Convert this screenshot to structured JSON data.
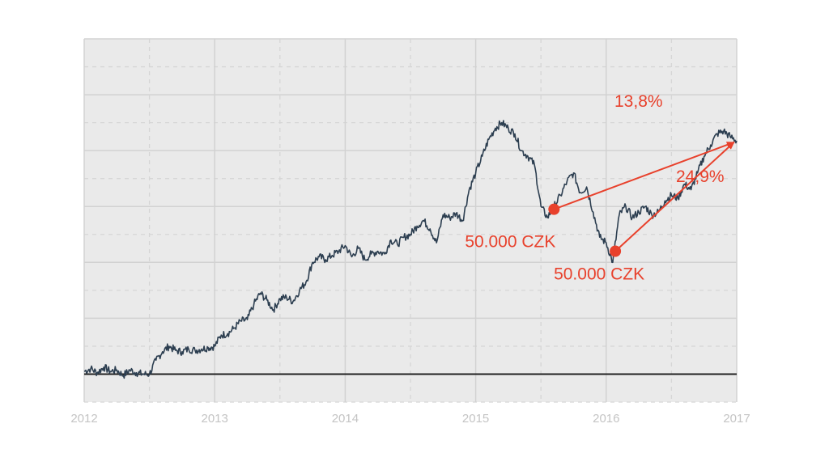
{
  "chart_data": {
    "type": "line",
    "title": "",
    "xlabel": "",
    "ylabel": "",
    "x_ticks": [
      "2012",
      "2013",
      "2014",
      "2015",
      "2016",
      "2017"
    ],
    "xlim": [
      2012.0,
      2017.0
    ],
    "ylim": [
      -100,
      1200
    ],
    "y_tick_labels_shown": false,
    "grid": true,
    "grid_style": "solid major lines with dashed minor lines",
    "baseline_y": 0,
    "series": [
      {
        "x": [
          2012.0,
          2012.05,
          2012.1,
          2012.15,
          2012.2,
          2012.25,
          2012.3,
          2012.35,
          2012.4,
          2012.45,
          2012.5,
          2012.55,
          2012.6,
          2012.65,
          2012.7,
          2012.75,
          2012.8,
          2012.85,
          2012.9,
          2012.95,
          2013.0,
          2013.05,
          2013.1,
          2013.15,
          2013.2,
          2013.25,
          2013.3,
          2013.35,
          2013.4,
          2013.45,
          2013.5,
          2013.55,
          2013.6,
          2013.65,
          2013.7,
          2013.75,
          2013.8,
          2013.85,
          2013.9,
          2013.95,
          2014.0,
          2014.05,
          2014.1,
          2014.15,
          2014.2,
          2014.25,
          2014.3,
          2014.35,
          2014.4,
          2014.45,
          2014.5,
          2014.55,
          2014.6,
          2014.65,
          2014.7,
          2014.75,
          2014.8,
          2014.85,
          2014.9,
          2014.95,
          2015.0,
          2015.05,
          2015.1,
          2015.15,
          2015.2,
          2015.25,
          2015.3,
          2015.35,
          2015.4,
          2015.45,
          2015.5,
          2015.55,
          2015.6,
          2015.65,
          2015.7,
          2015.75,
          2015.8,
          2015.85,
          2015.9,
          2015.95,
          2016.0,
          2016.05,
          2016.1,
          2016.15,
          2016.2,
          2016.25,
          2016.3,
          2016.35,
          2016.4,
          2016.45,
          2016.5,
          2016.55,
          2016.6,
          2016.65,
          2016.7,
          2016.75,
          2016.8,
          2016.85,
          2016.9,
          2016.95,
          2017.0
        ],
        "y": [
          10,
          20,
          5,
          25,
          10,
          15,
          -5,
          15,
          5,
          0,
          0,
          50,
          80,
          100,
          85,
          80,
          90,
          85,
          90,
          95,
          100,
          140,
          145,
          165,
          190,
          195,
          250,
          290,
          265,
          230,
          270,
          275,
          260,
          300,
          330,
          400,
          420,
          410,
          425,
          440,
          460,
          420,
          450,
          410,
          430,
          440,
          430,
          480,
          465,
          490,
          500,
          530,
          550,
          520,
          470,
          570,
          560,
          575,
          550,
          660,
          720,
          780,
          840,
          880,
          900,
          880,
          860,
          800,
          780,
          750,
          600,
          560,
          600,
          640,
          690,
          720,
          650,
          670,
          580,
          490,
          470,
          400,
          570,
          600,
          560,
          580,
          600,
          570,
          580,
          620,
          640,
          630,
          680,
          660,
          720,
          780,
          820,
          860,
          870,
          850,
          835
        ]
      }
    ],
    "points": [
      {
        "x": 2015.6,
        "y": 590,
        "label": "50.000 CZK"
      },
      {
        "x": 2016.07,
        "y": 440,
        "label": "50.000 CZK"
      }
    ],
    "arrows": [
      {
        "from": [
          2015.6,
          590
        ],
        "to": [
          2016.98,
          830
        ],
        "label": "13,8%"
      },
      {
        "from": [
          2016.07,
          440
        ],
        "to": [
          2016.98,
          830
        ],
        "label": "24,9%"
      }
    ],
    "colors": {
      "plot_background": "#eaeaea",
      "grid_major": "#d2d2d2",
      "grid_minor": "#d6d6d6",
      "line": "#2c3e50",
      "baseline": "#1a1a1a",
      "annotation": "#e8412c",
      "tick_labels": "#c4c4c4"
    }
  }
}
